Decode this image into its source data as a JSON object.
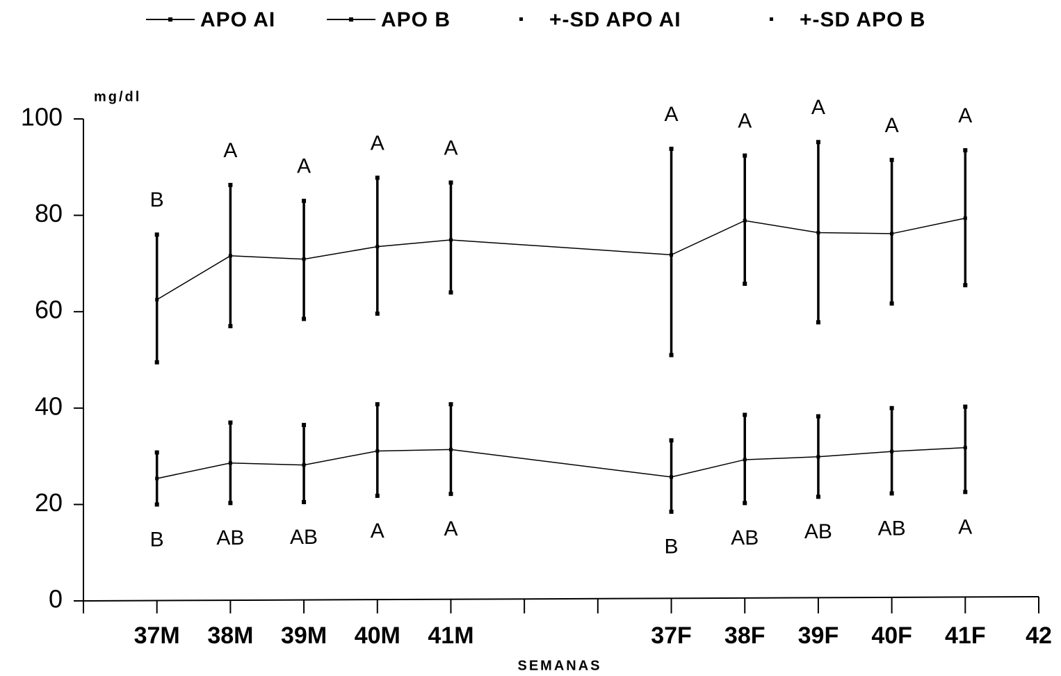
{
  "chart_data": {
    "type": "line",
    "y_label": "mg/dl",
    "x_label": "SEMANAS",
    "x": [
      1,
      2,
      3,
      4,
      5,
      8,
      9,
      10,
      11,
      12
    ],
    "xlim": [
      0,
      13
    ],
    "xticks": [
      {
        "value": 1,
        "label": "37M"
      },
      {
        "value": 2,
        "label": "38M"
      },
      {
        "value": 3,
        "label": "39M"
      },
      {
        "value": 4,
        "label": "40M"
      },
      {
        "value": 5,
        "label": "41M"
      },
      {
        "value": 6,
        "label": null
      },
      {
        "value": 7,
        "label": null
      },
      {
        "value": 8,
        "label": "37F"
      },
      {
        "value": 9,
        "label": "38F"
      },
      {
        "value": 10,
        "label": "39F"
      },
      {
        "value": 11,
        "label": "40F"
      },
      {
        "value": 12,
        "label": "41F"
      },
      {
        "value": 13,
        "label": "42"
      }
    ],
    "ylim": [
      0,
      100
    ],
    "yticks": [
      0,
      20,
      40,
      60,
      80,
      100
    ],
    "series": [
      {
        "name": "APO AI",
        "color": "#000000",
        "values": [
          62.5,
          71.6,
          70.9,
          73.5,
          74.9,
          71.8,
          78.9,
          76.4,
          76.2,
          79.4
        ]
      },
      {
        "name": "APO B",
        "color": "#000000",
        "values": [
          25.4,
          28.6,
          28.2,
          31.1,
          31.4,
          25.7,
          29.3,
          29.9,
          31.0,
          31.8
        ]
      },
      {
        "name": "+-SD APO AI",
        "color": "#000000",
        "upper": [
          76,
          86.3,
          83,
          87.8,
          86.8,
          93.8,
          92.4,
          95.2,
          91.5,
          93.5
        ],
        "lower": [
          49.5,
          57,
          58.5,
          59.6,
          64,
          51,
          65.8,
          57.8,
          61.7,
          65.5
        ]
      },
      {
        "name": "+-SD APO B",
        "color": "#000000",
        "upper": [
          30.8,
          37,
          36.5,
          40.8,
          40.8,
          33.3,
          38.6,
          38.3,
          40,
          40.3
        ],
        "lower": [
          20,
          20.3,
          20.5,
          21.8,
          22.2,
          18.5,
          20.3,
          21.6,
          22.3,
          22.6
        ]
      }
    ],
    "letters_apo_ai": [
      "B",
      "A",
      "A",
      "A",
      "A",
      "A",
      "A",
      "A",
      "A",
      "A"
    ],
    "letters_apo_b": [
      "B",
      "AB",
      "AB",
      "A",
      "A",
      "B",
      "AB",
      "AB",
      "AB",
      "A"
    ]
  }
}
